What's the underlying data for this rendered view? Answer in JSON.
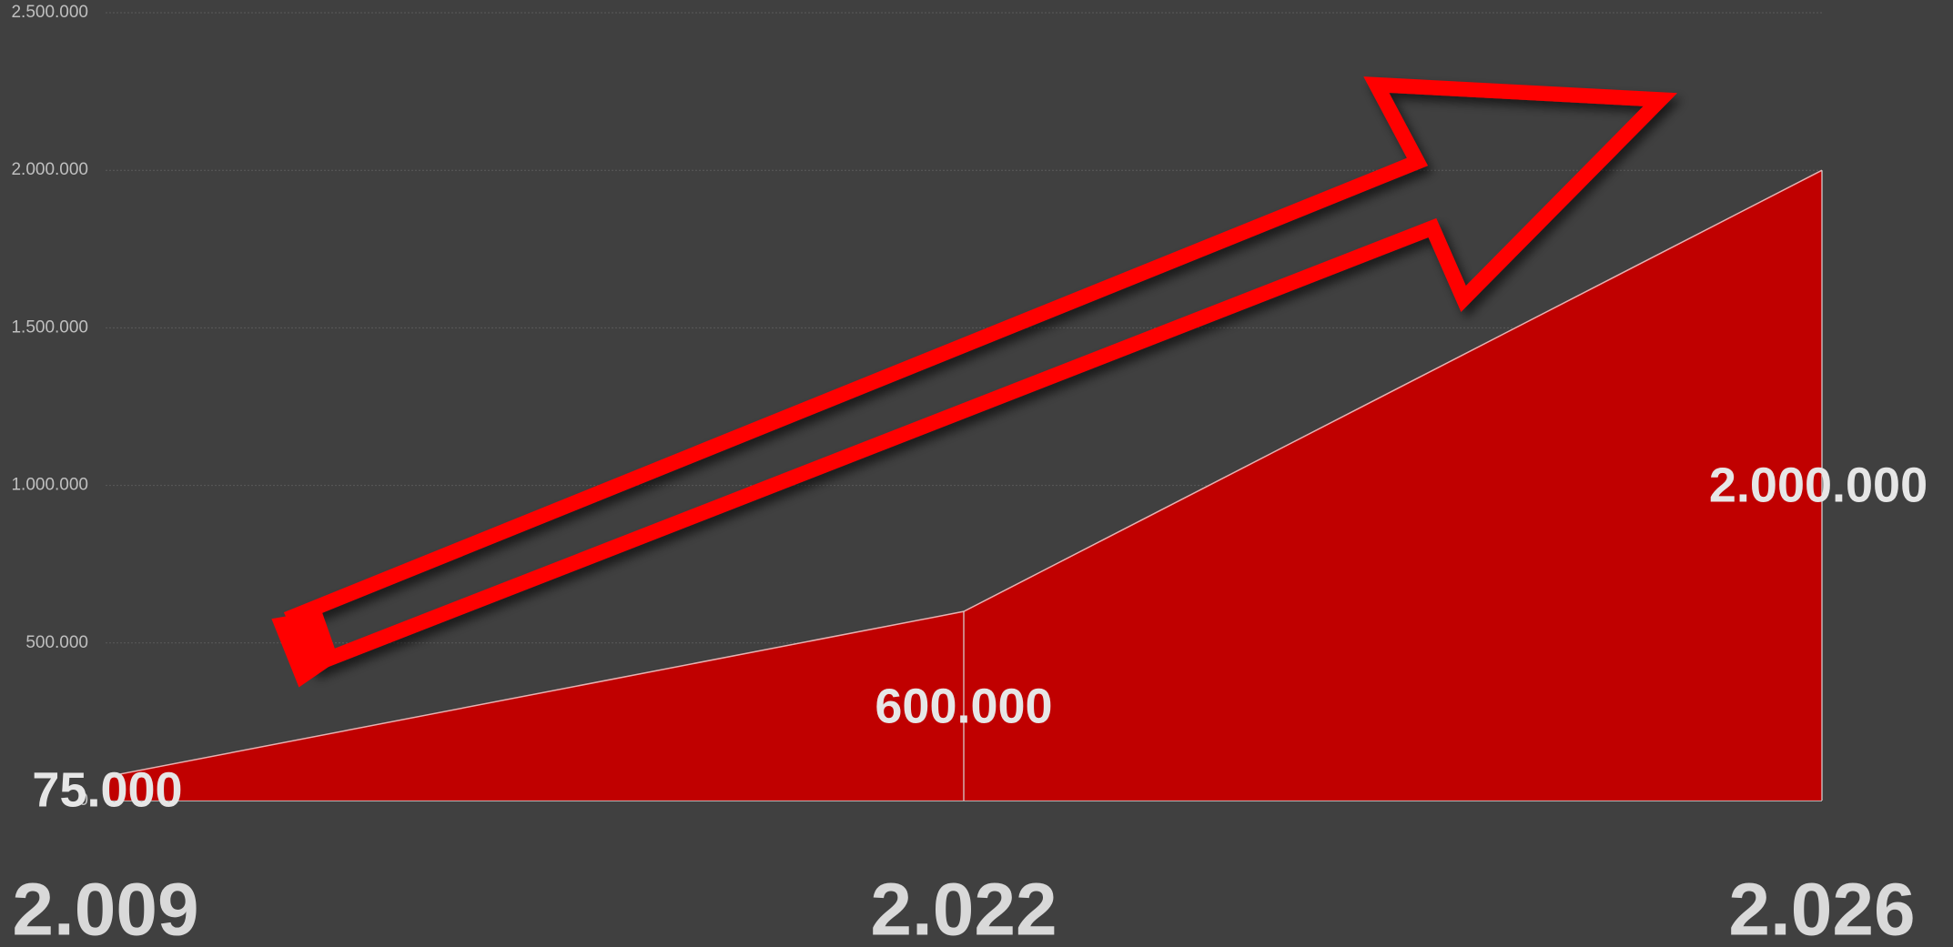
{
  "chart_data": {
    "type": "area",
    "categories": [
      "2.009",
      "2.022",
      "2.026"
    ],
    "series": [
      {
        "name": null,
        "color": "#c00000",
        "values": [
          75000,
          600000,
          2000000
        ],
        "value_labels": [
          "75.000",
          "600.000",
          "2.000.000"
        ]
      }
    ],
    "ylim": [
      0,
      2500000
    ],
    "yticks": [
      0,
      {
        "value": 500000,
        "label": "500.000"
      },
      {
        "value": 1000000,
        "label": "1.000.000"
      },
      {
        "value": 1500000,
        "label": "1.500.000"
      },
      {
        "value": 2000000,
        "label": "2.000.000"
      },
      {
        "value": 2500000,
        "label": "2.500.000"
      }
    ],
    "grid": true
  }
}
